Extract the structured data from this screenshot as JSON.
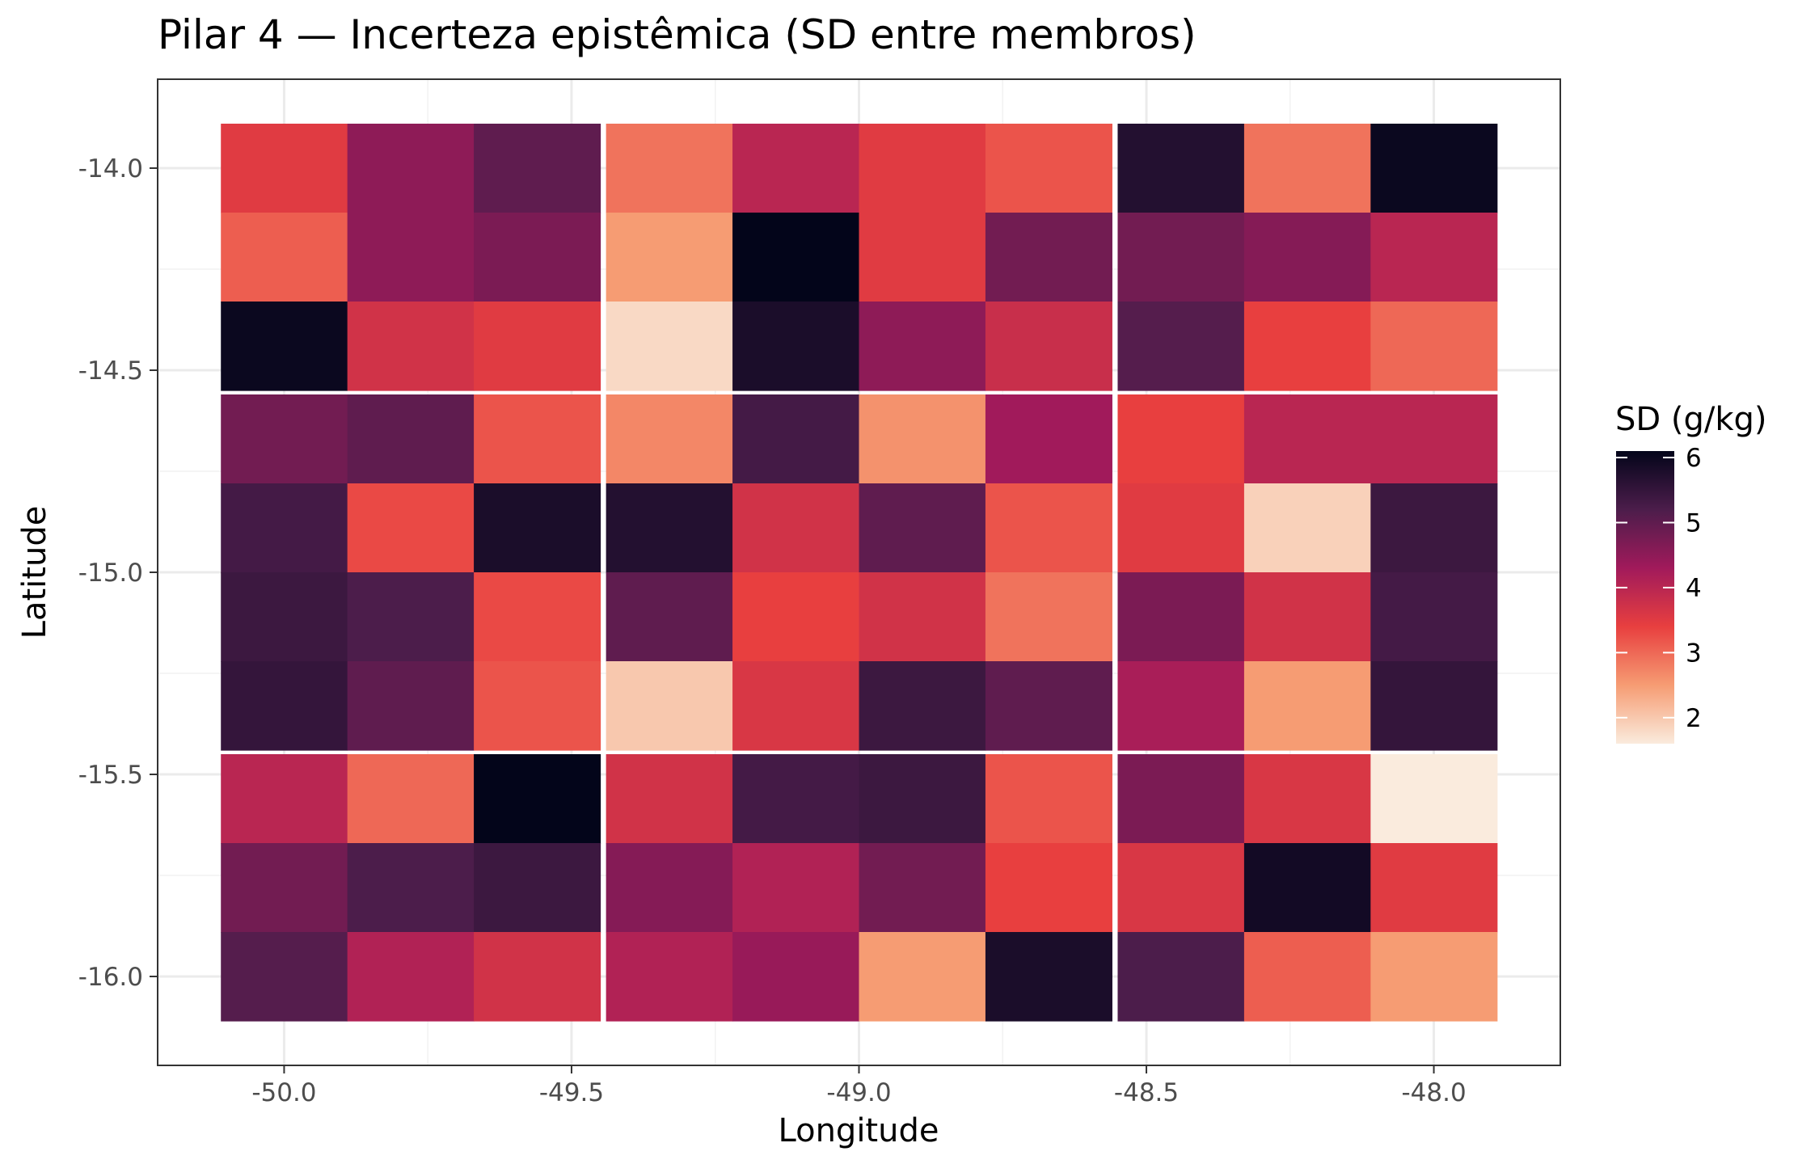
{
  "chart_data": {
    "type": "heatmap",
    "title": "Pilar 4 — Incerteza epistêmica (SD entre membros)",
    "xlabel": "Longitude",
    "ylabel": "Latitude",
    "x": [
      -50.0,
      -49.78,
      -49.56,
      -49.33,
      -49.11,
      -48.89,
      -48.67,
      -48.44,
      -48.22,
      -48.0
    ],
    "y": [
      -14.0,
      -14.22,
      -14.44,
      -14.67,
      -14.89,
      -15.11,
      -15.33,
      -15.56,
      -15.78,
      -16.0
    ],
    "xlim": [
      -50.22,
      -47.78
    ],
    "ylim": [
      -16.22,
      -13.78
    ],
    "x_ticks": [
      -50.0,
      -49.5,
      -49.0,
      -48.5,
      -48.0
    ],
    "x_tick_labels": [
      "-50.0",
      "-49.5",
      "-49.0",
      "-48.5",
      "-48.0"
    ],
    "y_ticks": [
      -14.0,
      -14.5,
      -15.0,
      -15.5,
      -16.0
    ],
    "y_tick_labels": [
      "-14.0",
      "-14.5",
      "-15.0",
      "-15.5",
      "-16.0"
    ],
    "values": [
      [
        3.5,
        4.5,
        5.0,
        2.9,
        4.0,
        3.5,
        3.2,
        5.7,
        2.9,
        6.0
      ],
      [
        3.1,
        4.5,
        4.7,
        2.5,
        6.1,
        3.5,
        4.8,
        4.8,
        4.6,
        4.0
      ],
      [
        6.0,
        3.7,
        3.5,
        1.8,
        5.8,
        4.5,
        3.8,
        5.1,
        3.4,
        3.0
      ],
      [
        4.8,
        5.0,
        3.2,
        2.7,
        5.3,
        2.6,
        4.3,
        3.4,
        4.0,
        4.0
      ],
      [
        5.3,
        3.3,
        5.8,
        5.7,
        3.7,
        5.0,
        3.2,
        3.5,
        1.9,
        5.4
      ],
      [
        5.4,
        5.2,
        3.3,
        5.0,
        3.4,
        3.7,
        2.9,
        4.7,
        3.7,
        5.3
      ],
      [
        5.5,
        5.0,
        3.2,
        2.0,
        3.6,
        5.4,
        5.0,
        4.2,
        2.5,
        5.5
      ],
      [
        4.0,
        3.0,
        6.1,
        3.7,
        5.3,
        5.4,
        3.2,
        4.7,
        3.6,
        1.6
      ],
      [
        4.8,
        5.2,
        5.4,
        4.6,
        4.1,
        4.8,
        3.4,
        3.6,
        5.9,
        3.5
      ],
      [
        5.1,
        4.1,
        3.7,
        4.1,
        4.4,
        2.5,
        5.8,
        5.2,
        3.1,
        2.5
      ]
    ],
    "legend": {
      "title": "SD (g/kg)",
      "placement": "right",
      "range": [
        1.6,
        6.1
      ],
      "ticks": [
        2,
        3,
        4,
        5,
        6
      ],
      "tick_labels": [
        "2",
        "3",
        "4",
        "5",
        "6"
      ]
    },
    "colormap": "rocket",
    "colormap_stops": [
      "#03051a",
      "#4c1d4b",
      "#a11a5b",
      "#e83f3f",
      "#f69c73",
      "#faebdd"
    ],
    "grid": true,
    "theme": "bw"
  }
}
